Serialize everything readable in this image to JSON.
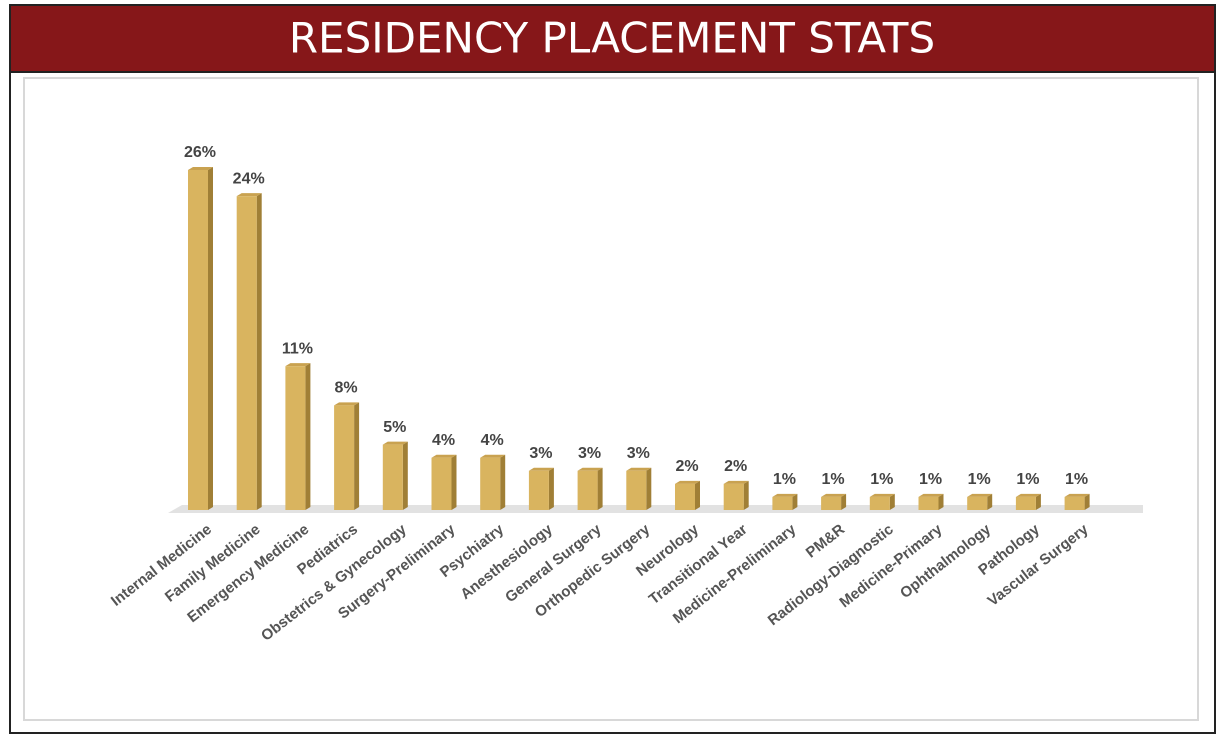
{
  "chart_data": {
    "type": "bar",
    "title": "RESIDENCY PLACEMENT STATS",
    "categories": [
      "Internal Medicine",
      "Family Medicine",
      "Emergency Medicine",
      "Pediatrics",
      "Obstetrics & Gynecology",
      "Surgery-Preliminary",
      "Psychiatry",
      "Anesthesiology",
      "General Surgery",
      "Orthopedic Surgery",
      "Neurology",
      "Transitional Year",
      "Medicine-Preliminary",
      "PM&R",
      "Radiology-Diagnostic",
      "Medicine-Primary",
      "Ophthalmology",
      "Pathology",
      "Vascular Surgery"
    ],
    "values": [
      26,
      24,
      11,
      8,
      5,
      4,
      4,
      3,
      3,
      3,
      2,
      2,
      1,
      1,
      1,
      1,
      1,
      1,
      1
    ],
    "value_labels": [
      "26%",
      "24%",
      "11%",
      "8%",
      "5%",
      "4%",
      "4%",
      "3%",
      "3%",
      "3%",
      "2%",
      "2%",
      "1%",
      "1%",
      "1%",
      "1%",
      "1%",
      "1%",
      "1%"
    ],
    "color": "#d9b45f"
  }
}
